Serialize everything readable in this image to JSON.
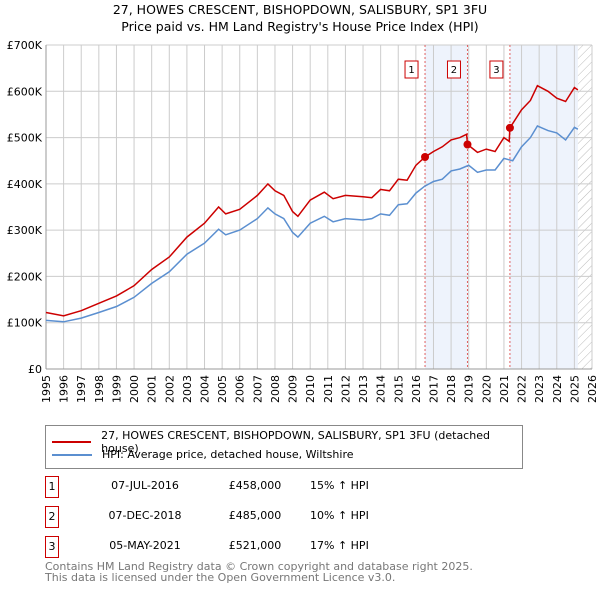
{
  "chart_data": {
    "type": "line",
    "title": "27, HOWES CRESCENT, BISHOPDOWN, SALISBURY, SP1 3FU",
    "subtitle": "Price paid vs. HM Land Registry's House Price Index (HPI)",
    "xlim": [
      1995,
      2026
    ],
    "ylim": [
      0,
      700000
    ],
    "x_ticks": [
      "1995",
      "1996",
      "1997",
      "1998",
      "1999",
      "2000",
      "2001",
      "2002",
      "2003",
      "2004",
      "2005",
      "2006",
      "2007",
      "2008",
      "2009",
      "2010",
      "2011",
      "2012",
      "2013",
      "2014",
      "2015",
      "2016",
      "2017",
      "2018",
      "2019",
      "2020",
      "2021",
      "2022",
      "2023",
      "2024",
      "2025",
      "2026"
    ],
    "y_ticks": [
      {
        "v": 0,
        "label": "£0"
      },
      {
        "v": 100000,
        "label": "£100K"
      },
      {
        "v": 200000,
        "label": "£200K"
      },
      {
        "v": 300000,
        "label": "£300K"
      },
      {
        "v": 400000,
        "label": "£400K"
      },
      {
        "v": 500000,
        "label": "£500K"
      },
      {
        "v": 600000,
        "label": "£600K"
      },
      {
        "v": 700000,
        "label": "£700K"
      }
    ],
    "grid": true,
    "series": [
      {
        "name": "27, HOWES CRESCENT, BISHOPDOWN, SALISBURY, SP1 3FU (detached house)",
        "color": "#cc0000",
        "x": [
          1995,
          1996,
          1997,
          1998,
          1999,
          2000,
          2001,
          2002,
          2003,
          2004,
          2004.8,
          2005.2,
          2006,
          2007,
          2007.6,
          2008,
          2008.5,
          2009,
          2009.3,
          2010,
          2010.8,
          2011.3,
          2012,
          2013,
          2013.5,
          2014,
          2014.5,
          2015,
          2015.5,
          2016,
          2016.52,
          2017,
          2017.5,
          2018,
          2018.5,
          2018.88,
          2018.93,
          2019.5,
          2020,
          2020.5,
          2021,
          2021.3,
          2021.34,
          2022,
          2022.5,
          2022.9,
          2023.5,
          2024,
          2024.5,
          2025,
          2025.2
        ],
        "y": [
          122000,
          115000,
          126000,
          142000,
          158000,
          180000,
          215000,
          242000,
          285000,
          315000,
          350000,
          335000,
          345000,
          375000,
          400000,
          385000,
          375000,
          340000,
          330000,
          365000,
          382000,
          368000,
          375000,
          372000,
          370000,
          388000,
          385000,
          410000,
          408000,
          440000,
          458000,
          470000,
          480000,
          495000,
          500000,
          507000,
          485000,
          468000,
          475000,
          470000,
          500000,
          492000,
          521000,
          560000,
          580000,
          612000,
          600000,
          585000,
          578000,
          608000,
          603000
        ]
      },
      {
        "name": "HPI: Average price, detached house, Wiltshire",
        "color": "#5b8fd0",
        "x": [
          1995,
          1996,
          1997,
          1998,
          1999,
          2000,
          2001,
          2002,
          2003,
          2004,
          2004.8,
          2005.2,
          2006,
          2007,
          2007.6,
          2008,
          2008.5,
          2009,
          2009.3,
          2010,
          2010.8,
          2011.3,
          2012,
          2013,
          2013.5,
          2014,
          2014.5,
          2015,
          2015.5,
          2016,
          2016.5,
          2017,
          2017.5,
          2018,
          2018.5,
          2019,
          2019.5,
          2020,
          2020.5,
          2021,
          2021.5,
          2022,
          2022.5,
          2022.9,
          2023.5,
          2024,
          2024.5,
          2025,
          2025.2
        ],
        "y": [
          105000,
          102000,
          110000,
          122000,
          135000,
          155000,
          185000,
          210000,
          248000,
          272000,
          302000,
          290000,
          300000,
          325000,
          348000,
          335000,
          325000,
          295000,
          285000,
          315000,
          330000,
          318000,
          325000,
          322000,
          325000,
          335000,
          332000,
          355000,
          357000,
          380000,
          395000,
          405000,
          410000,
          428000,
          432000,
          440000,
          425000,
          430000,
          430000,
          455000,
          450000,
          480000,
          500000,
          525000,
          515000,
          510000,
          495000,
          522000,
          518000
        ]
      }
    ],
    "sales": [
      {
        "n": "1",
        "x": 2016.52,
        "y": 458000,
        "date": "07-JUL-2016",
        "price": "£458,000",
        "hpi": "15% ↑ HPI"
      },
      {
        "n": "2",
        "x": 2018.93,
        "y": 485000,
        "date": "07-DEC-2018",
        "price": "£485,000",
        "hpi": "10% ↑ HPI"
      },
      {
        "n": "3",
        "x": 2021.34,
        "y": 521000,
        "date": "05-MAY-2021",
        "price": "£521,000",
        "hpi": "17% ↑ HPI"
      }
    ],
    "data_end": 2025.2,
    "legend_placement": "below"
  },
  "footer": {
    "line1": "Contains HM Land Registry data © Crown copyright and database right 2025.",
    "line2": "This data is licensed under the Open Government Licence v3.0."
  }
}
